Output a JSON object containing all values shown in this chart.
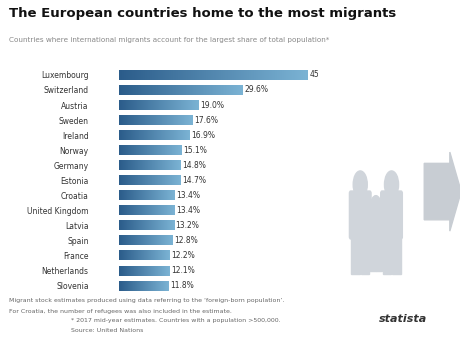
{
  "title": "The European countries home to the most migrants",
  "subtitle": "Countries where international migrants account for the largest share of total population*",
  "countries": [
    "Luxembourg",
    "Switzerland",
    "Austria",
    "Sweden",
    "Ireland",
    "Norway",
    "Germany",
    "Estonia",
    "Croatia",
    "United Kingdom",
    "Latvia",
    "Spain",
    "France",
    "Netherlands",
    "Slovenia"
  ],
  "values": [
    45.3,
    29.6,
    19.0,
    17.6,
    16.9,
    15.1,
    14.8,
    14.7,
    13.4,
    13.4,
    13.2,
    12.8,
    12.2,
    12.1,
    11.8
  ],
  "bar_color_left": "#2b5c8a",
  "bar_color_right": "#7bb3d4",
  "background_color": "#ffffff",
  "text_color": "#333333",
  "subtitle_color": "#888888",
  "footnote_color": "#666666",
  "footnote1": "Migrant stock estimates produced using data referring to the ‘foreign-born population’.",
  "footnote2": "For Croatia, the number of refugees was also included in the estimate.",
  "footnote3": "* 2017 mid-year estimates. Countries with a population >500,000.",
  "footnote4": "Source: United Nations",
  "xlim": [
    0,
    50
  ],
  "bar_height": 0.65,
  "label_fontsize": 5.5,
  "title_fontsize": 9.5,
  "subtitle_fontsize": 5.2,
  "footnote_fontsize": 4.5
}
